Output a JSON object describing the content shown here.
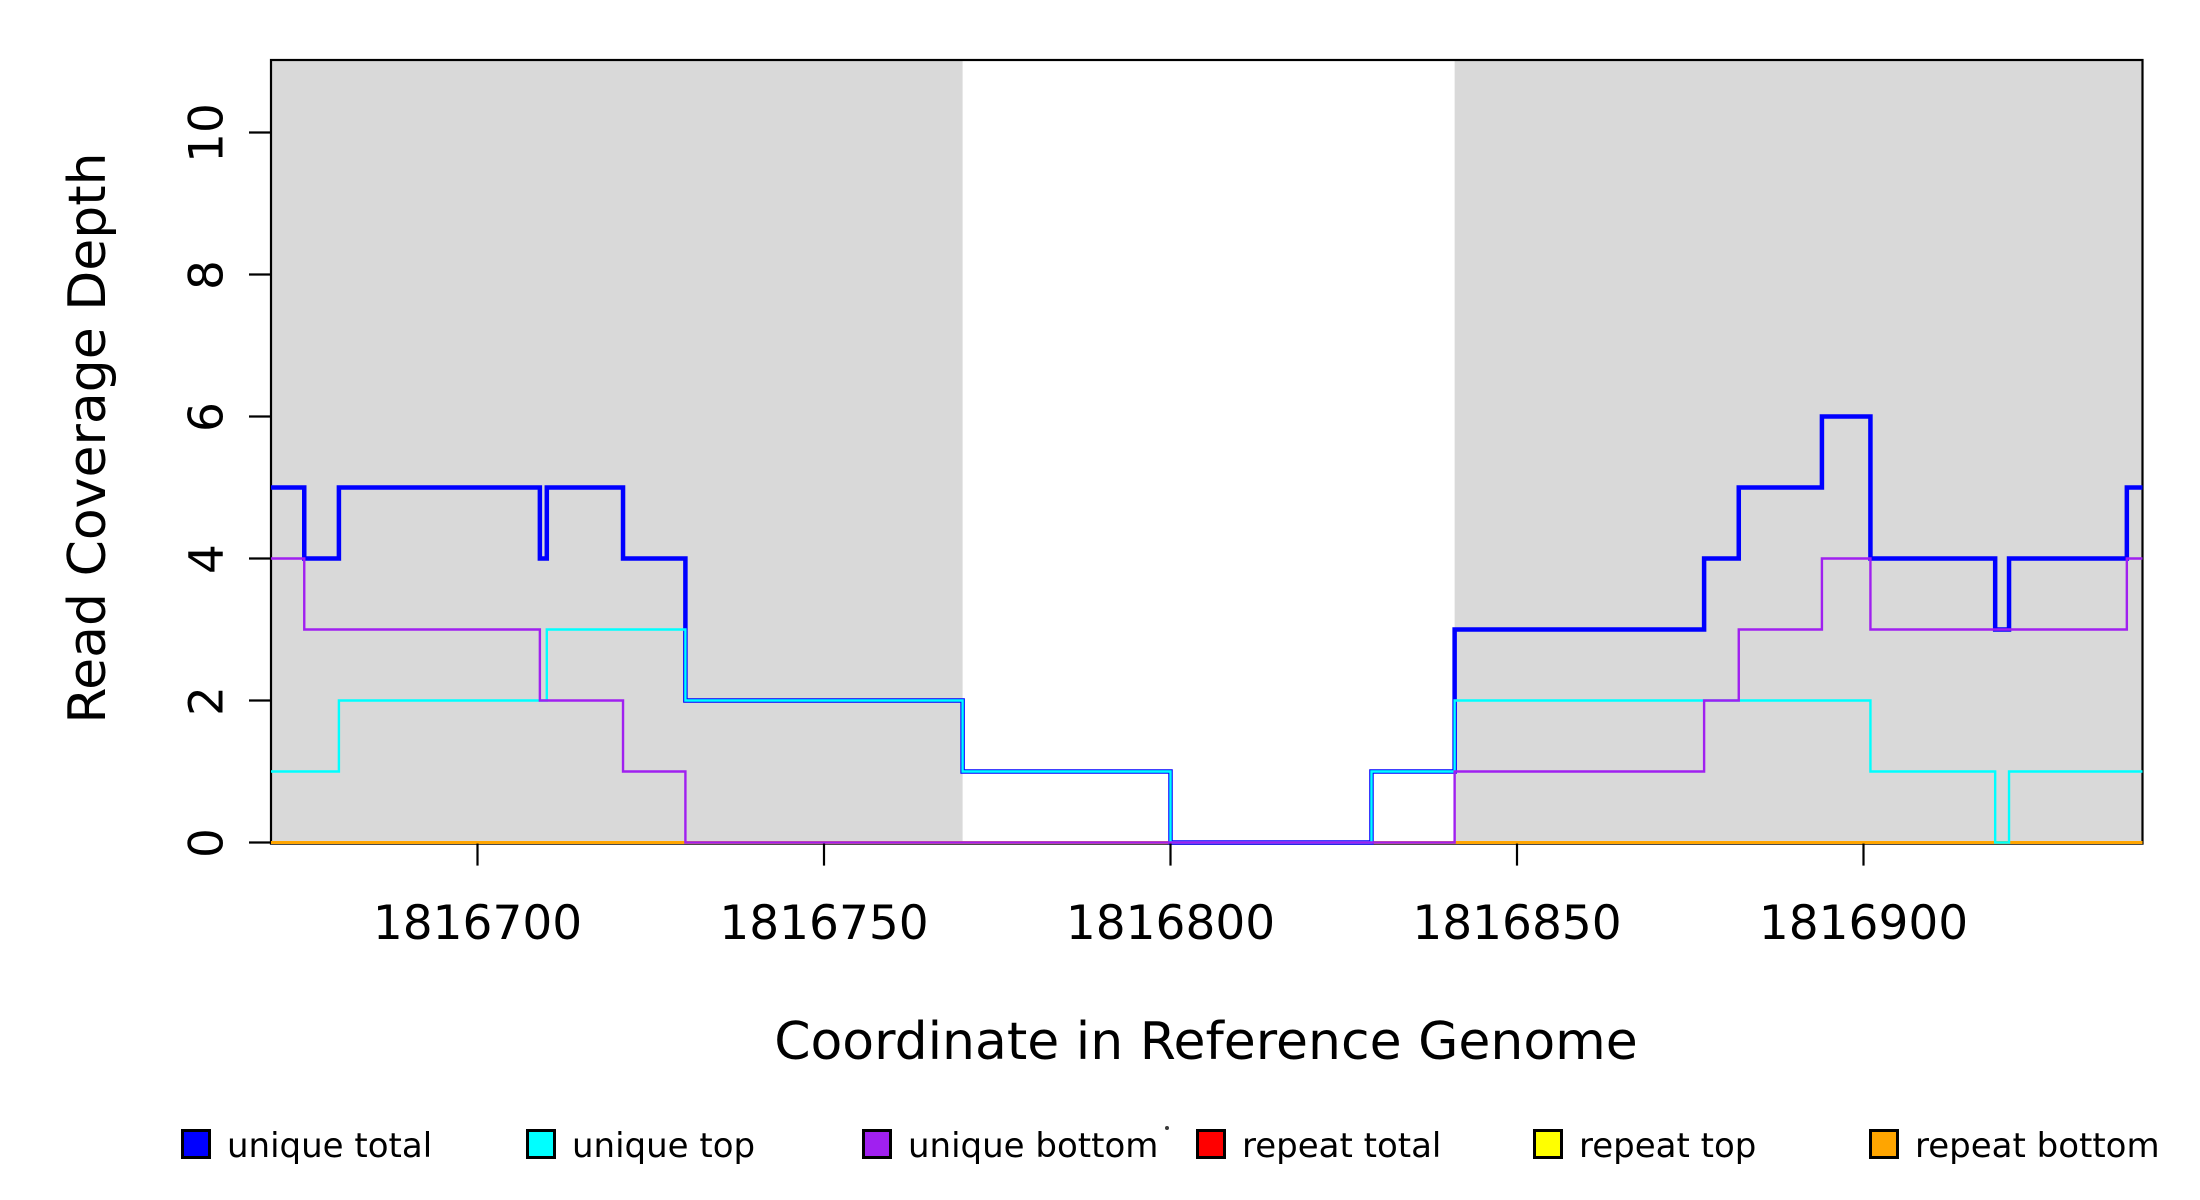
{
  "figure": {
    "x_axis_title": "Coordinate in Reference Genome",
    "y_axis_title": "Read Coverage Depth"
  },
  "legend": {
    "items": [
      {
        "label": "unique total",
        "color": "#0000FF"
      },
      {
        "label": "unique top",
        "color": "#00FFFF"
      },
      {
        "label": "unique bottom",
        "color": "#A020F0"
      },
      {
        "label": "repeat total",
        "color": "#FF0000"
      },
      {
        "label": "repeat top",
        "color": "#FFFF00"
      },
      {
        "label": "repeat bottom",
        "color": "#FFA500"
      }
    ],
    "stray_dot_artifact": true
  },
  "chart_data": {
    "type": "line",
    "step": true,
    "title": "",
    "xlabel": "Coordinate in Reference Genome",
    "ylabel": "Read Coverage Depth",
    "x_ticks": [
      1816700,
      1816750,
      1816800,
      1816850,
      1816900
    ],
    "x_tick_labels": [
      "1816700",
      "1816750",
      "1816800",
      "1816850",
      "1816900"
    ],
    "y_ticks": [
      0,
      2,
      4,
      6,
      8,
      10
    ],
    "y_tick_labels": [
      "0",
      "2",
      "4",
      "6",
      "8",
      "10"
    ],
    "x_range": [
      1816670,
      1816940.3
    ],
    "y_range": [
      0,
      11
    ],
    "grid": false,
    "legend_position": "bottom",
    "plot_bg": "#FFFFFF",
    "shading": {
      "color": "#D9D9D9",
      "regions": [
        {
          "name": "left-gray-block",
          "start": 1816670,
          "end": 1816770
        },
        {
          "name": "right-gray-block",
          "start": 1816841,
          "end": 1816940.3
        }
      ]
    },
    "series": [
      {
        "name": "repeat total",
        "color": "#FF0000",
        "width": 2.2,
        "steps": [
          [
            1816670,
            0
          ]
        ]
      },
      {
        "name": "repeat top",
        "color": "#FFFF00",
        "width": 2.2,
        "steps": [
          [
            1816670,
            0
          ]
        ]
      },
      {
        "name": "repeat bottom",
        "color": "#FFA500",
        "width": 3,
        "steps": [
          [
            1816670,
            0
          ]
        ]
      },
      {
        "name": "unique total",
        "color": "#0000FF",
        "width": 4.5,
        "steps": [
          [
            1816670,
            5
          ],
          [
            1816675,
            4
          ],
          [
            1816680,
            5
          ],
          [
            1816709,
            4
          ],
          [
            1816710,
            5
          ],
          [
            1816721,
            4
          ],
          [
            1816730,
            2
          ],
          [
            1816770,
            1
          ],
          [
            1816800,
            0
          ],
          [
            1816829,
            1
          ],
          [
            1816841,
            3
          ],
          [
            1816877,
            4
          ],
          [
            1816882,
            5
          ],
          [
            1816894,
            6
          ],
          [
            1816901,
            4
          ],
          [
            1816919,
            3
          ],
          [
            1816921,
            4
          ],
          [
            1816938,
            5
          ]
        ]
      },
      {
        "name": "unique top",
        "color": "#00FFFF",
        "width": 2.4,
        "steps": [
          [
            1816670,
            1
          ],
          [
            1816680,
            2
          ],
          [
            1816710,
            3
          ],
          [
            1816730,
            2
          ],
          [
            1816770,
            1
          ],
          [
            1816800,
            0
          ],
          [
            1816829,
            1
          ],
          [
            1816841,
            2
          ],
          [
            1816901,
            1
          ],
          [
            1816919,
            0
          ],
          [
            1816921,
            1
          ]
        ]
      },
      {
        "name": "unique bottom",
        "color": "#A020F0",
        "width": 2.4,
        "steps": [
          [
            1816670,
            4
          ],
          [
            1816675,
            3
          ],
          [
            1816709,
            2
          ],
          [
            1816721,
            1
          ],
          [
            1816730,
            0
          ],
          [
            1816841,
            1
          ],
          [
            1816877,
            2
          ],
          [
            1816882,
            3
          ],
          [
            1816894,
            4
          ],
          [
            1816901,
            3
          ],
          [
            1816938,
            4
          ]
        ]
      }
    ]
  }
}
